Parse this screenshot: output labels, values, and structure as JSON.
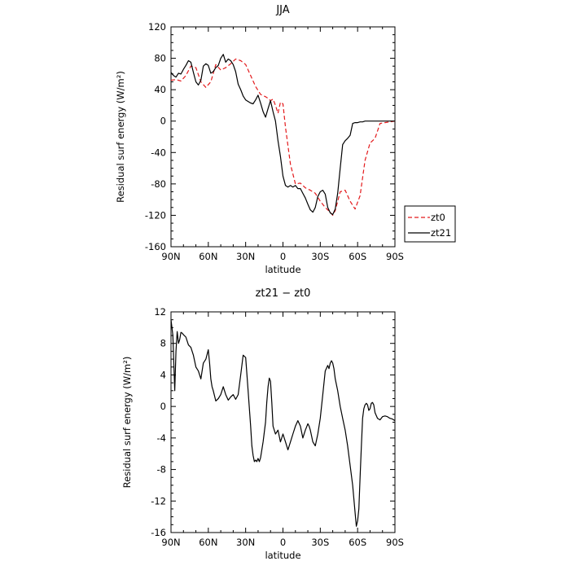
{
  "chart_data": [
    {
      "type": "line",
      "title": "JJA",
      "xlabel": "latitude",
      "ylabel": "Residual surf energy (W/m²)",
      "xlim": [
        90,
        -90
      ],
      "ylim": [
        -160,
        120
      ],
      "x_ticks": [
        {
          "value": 90,
          "label": "90N"
        },
        {
          "value": 60,
          "label": "60N"
        },
        {
          "value": 30,
          "label": "30N"
        },
        {
          "value": 0,
          "label": "0"
        },
        {
          "value": -30,
          "label": "30S"
        },
        {
          "value": -60,
          "label": "60S"
        },
        {
          "value": -90,
          "label": "90S"
        }
      ],
      "y_ticks": [
        -160,
        -120,
        -80,
        -40,
        0,
        40,
        80,
        120
      ],
      "legend": {
        "placement": "right"
      },
      "series": [
        {
          "name": "zt0",
          "color": "#e31a1c",
          "dash": "dashed",
          "x": [
            90,
            86,
            82,
            78,
            74,
            70,
            66,
            62,
            58,
            54,
            50,
            46,
            42,
            38,
            34,
            30,
            26,
            22,
            18,
            14,
            12,
            10,
            8,
            6,
            4,
            2,
            0,
            -2,
            -6,
            -10,
            -14,
            -18,
            -22,
            -26,
            -30,
            -34,
            -38,
            -40,
            -42,
            -46,
            -50,
            -54,
            -58,
            -62,
            -66,
            -70,
            -74,
            -78,
            -82,
            -86,
            -90
          ],
          "y": [
            52,
            53,
            51,
            58,
            70,
            68,
            50,
            43,
            50,
            72,
            65,
            68,
            73,
            79,
            77,
            72,
            58,
            44,
            34,
            31,
            29,
            26,
            28,
            20,
            10,
            24,
            22,
            -8,
            -55,
            -80,
            -79,
            -85,
            -88,
            -92,
            -102,
            -110,
            -116,
            -120,
            -114,
            -90,
            -88,
            -102,
            -112,
            -95,
            -50,
            -28,
            -22,
            -3,
            -2,
            -1,
            0
          ]
        },
        {
          "name": "zt21",
          "color": "#000000",
          "dash": "solid",
          "x": [
            90,
            88,
            86,
            84,
            82,
            80,
            78,
            76,
            74,
            72,
            70,
            68,
            66,
            64,
            62,
            60,
            58,
            56,
            54,
            52,
            50,
            48,
            46,
            44,
            42,
            40,
            38,
            36,
            34,
            32,
            30,
            28,
            26,
            24,
            22,
            20,
            18,
            16,
            14,
            12,
            10,
            8,
            6,
            4,
            2,
            0,
            -2,
            -4,
            -6,
            -8,
            -10,
            -12,
            -14,
            -16,
            -18,
            -20,
            -22,
            -24,
            -26,
            -28,
            -30,
            -32,
            -34,
            -36,
            -38,
            -40,
            -42,
            -44,
            -46,
            -48,
            -50,
            -52,
            -54,
            -56,
            -58,
            -60,
            -62,
            -64,
            -66,
            -68,
            -70,
            -72,
            -74,
            -76,
            -78,
            -80,
            -82,
            -84,
            -86,
            -88,
            -90
          ],
          "y": [
            62,
            58,
            56,
            61,
            60,
            66,
            71,
            77,
            75,
            62,
            50,
            46,
            52,
            70,
            73,
            71,
            61,
            63,
            68,
            71,
            80,
            85,
            75,
            79,
            77,
            72,
            63,
            47,
            40,
            32,
            27,
            25,
            23,
            22,
            27,
            33,
            23,
            12,
            5,
            16,
            26,
            12,
            0,
            -25,
            -45,
            -70,
            -82,
            -84,
            -82,
            -84,
            -82,
            -86,
            -86,
            -92,
            -98,
            -106,
            -113,
            -116,
            -110,
            -96,
            -90,
            -88,
            -93,
            -110,
            -117,
            -119,
            -112,
            -92,
            -60,
            -30,
            -25,
            -22,
            -18,
            -3,
            -2,
            -2,
            -1,
            -1,
            0,
            0,
            0,
            0,
            0,
            0,
            0,
            0,
            0,
            0,
            0,
            0,
            0
          ]
        }
      ]
    },
    {
      "type": "line",
      "title": "zt21 − zt0",
      "xlabel": "latitude",
      "ylabel": "Residual surf energy (W/m²)",
      "xlim": [
        90,
        -90
      ],
      "ylim": [
        -16,
        12
      ],
      "x_ticks": [
        {
          "value": 90,
          "label": "90N"
        },
        {
          "value": 60,
          "label": "60N"
        },
        {
          "value": 30,
          "label": "30N"
        },
        {
          "value": 0,
          "label": "0"
        },
        {
          "value": -30,
          "label": "30S"
        },
        {
          "value": -60,
          "label": "60S"
        },
        {
          "value": -90,
          "label": "90S"
        }
      ],
      "y_ticks": [
        -16,
        -12,
        -8,
        -4,
        0,
        4,
        8,
        12
      ],
      "series": [
        {
          "color": "#000000",
          "dash": "solid",
          "x": [
            90,
            88.5,
            87,
            86,
            85,
            84,
            83,
            82,
            81,
            80,
            78,
            76,
            74,
            72,
            70,
            68,
            66,
            64,
            62,
            60,
            59,
            58,
            57,
            56,
            54,
            52,
            50,
            48,
            46,
            44,
            42,
            40,
            38,
            36,
            34,
            32,
            30,
            28,
            26,
            25,
            24,
            23,
            22,
            21,
            20,
            19,
            18,
            16,
            14,
            13,
            12,
            11,
            10,
            9,
            8,
            6,
            4,
            2,
            0,
            -2,
            -4,
            -6,
            -8,
            -10,
            -12,
            -14,
            -16,
            -18,
            -20,
            -21,
            -22,
            -24,
            -26,
            -28,
            -30,
            -32,
            -34,
            -36,
            -37,
            -38,
            -39,
            -40,
            -41,
            -42,
            -44,
            -46,
            -48,
            -50,
            -52,
            -54,
            -56,
            -58,
            -59,
            -60,
            -61,
            -62,
            -63,
            -64,
            -65,
            -66,
            -67,
            -68,
            -69,
            -70,
            -71,
            -72,
            -73,
            -74,
            -76,
            -78,
            -80,
            -82,
            -84,
            -86,
            -88,
            -90
          ],
          "y": [
            11,
            9,
            2,
            7,
            9.5,
            8,
            8.5,
            9.4,
            9.3,
            9.1,
            8.8,
            7.8,
            7.5,
            6.5,
            5.0,
            4.5,
            3.5,
            5.5,
            6.0,
            7.2,
            5.5,
            3.5,
            2.5,
            2.0,
            0.7,
            1.0,
            1.5,
            2.5,
            1.5,
            0.8,
            1.2,
            1.5,
            0.9,
            1.5,
            4.0,
            6.5,
            6.2,
            2.0,
            -2.5,
            -5.0,
            -6.2,
            -7.0,
            -6.8,
            -7.0,
            -6.6,
            -7.0,
            -6.5,
            -4.5,
            -2.0,
            0.5,
            2.5,
            3.6,
            3.2,
            0.5,
            -2.5,
            -3.5,
            -3.0,
            -4.5,
            -3.5,
            -4.5,
            -5.5,
            -4.5,
            -3.5,
            -2.5,
            -1.8,
            -2.5,
            -4.0,
            -3.0,
            -2.2,
            -2.5,
            -3.0,
            -4.5,
            -5.0,
            -3.5,
            -1.5,
            1.5,
            4.5,
            5.2,
            4.8,
            5.5,
            5.8,
            5.5,
            4.8,
            3.5,
            2.0,
            0.0,
            -1.5,
            -3.0,
            -5.0,
            -7.5,
            -10.0,
            -13.5,
            -15.2,
            -14.5,
            -13.0,
            -9.0,
            -5.0,
            -1.5,
            -0.3,
            0.2,
            0.4,
            0.2,
            -0.5,
            -0.3,
            0.4,
            0.5,
            0.2,
            -0.8,
            -1.5,
            -1.7,
            -1.3,
            -1.2,
            -1.3,
            -1.5,
            -1.6,
            -1.8
          ]
        }
      ]
    }
  ]
}
